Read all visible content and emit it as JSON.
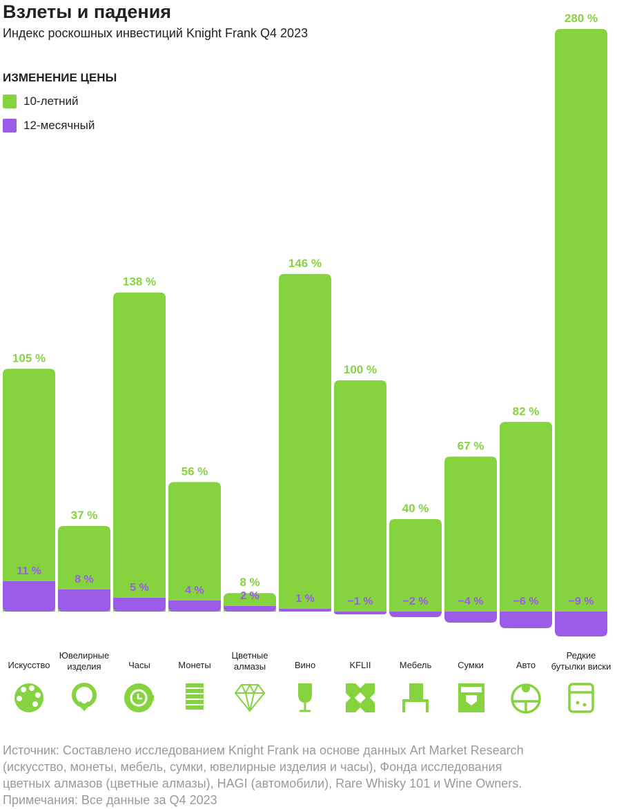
{
  "title": "Взлеты и падения",
  "subtitle": "Индекс роскошных инвестиций Knight Frank Q4 2023",
  "legend": {
    "heading": "ИЗМЕНЕНИЕ ЦЕНЫ",
    "items": [
      {
        "label": "10-летний",
        "color": "#84d33f"
      },
      {
        "label": "12-месячный",
        "color": "#9b5de8"
      }
    ]
  },
  "chart_data": {
    "type": "bar",
    "title": "Взлеты и падения",
    "categories": [
      "Искусство",
      "Ювелирные изделия",
      "Часы",
      "Монеты",
      "Цветные алмазы",
      "Вино",
      "KFLII",
      "Мебель",
      "Сумки",
      "Авто",
      "Редкие бутылки виски"
    ],
    "series": [
      {
        "name": "10-летний",
        "unit": "%",
        "values": [
          105,
          37,
          138,
          56,
          8,
          146,
          100,
          40,
          67,
          82,
          280
        ],
        "labels": [
          "105 %",
          "37 %",
          "138 %",
          "56 %",
          "8 %",
          "146 %",
          "100 %",
          "40 %",
          "67 %",
          "82 %",
          "280 %"
        ]
      },
      {
        "name": "12-месячный",
        "unit": "%",
        "values": [
          11,
          8,
          5,
          4,
          2,
          1,
          -1,
          -2,
          -4,
          -6,
          -9
        ],
        "labels": [
          "11 %",
          "8 %",
          "5 %",
          "4 %",
          "2 %",
          "1 %",
          "−1 %",
          "−2 %",
          "−4 %",
          "−6 %",
          "−9 %"
        ]
      }
    ],
    "legend": "top-left"
  },
  "categories_display": [
    [
      "Искусство"
    ],
    [
      "Ювелирные",
      "изделия"
    ],
    [
      "Часы"
    ],
    [
      "Монеты"
    ],
    [
      "Цветные",
      "алмазы"
    ],
    [
      "Вино"
    ],
    [
      "KFLII"
    ],
    [
      "Мебель"
    ],
    [
      "Сумки"
    ],
    [
      "Авто"
    ],
    [
      "Редкие",
      "бутылки виски"
    ]
  ],
  "icons": [
    "palette-icon",
    "ring-icon",
    "watch-icon",
    "coins-icon",
    "diamond-icon",
    "wine-glass-icon",
    "kflii-icon",
    "chair-icon",
    "bag-icon",
    "car-wheel-icon",
    "whisky-cabinet-icon"
  ],
  "footer": [
    "Источник: Составлено исследованием Knight Frank на основе данных Art Market Research",
    "(искусство, монеты, мебель, сумки, ювелирные изделия и часы), Фонда исследования",
    "цветных алмазов (цветные алмазы), HAGI (автомобили), Rare Whisky 101 и Wine Owners.",
    "Примечания: Все данные за Q4 2023"
  ],
  "colors": {
    "green": "#84d33f",
    "purple": "#9b5de8"
  }
}
